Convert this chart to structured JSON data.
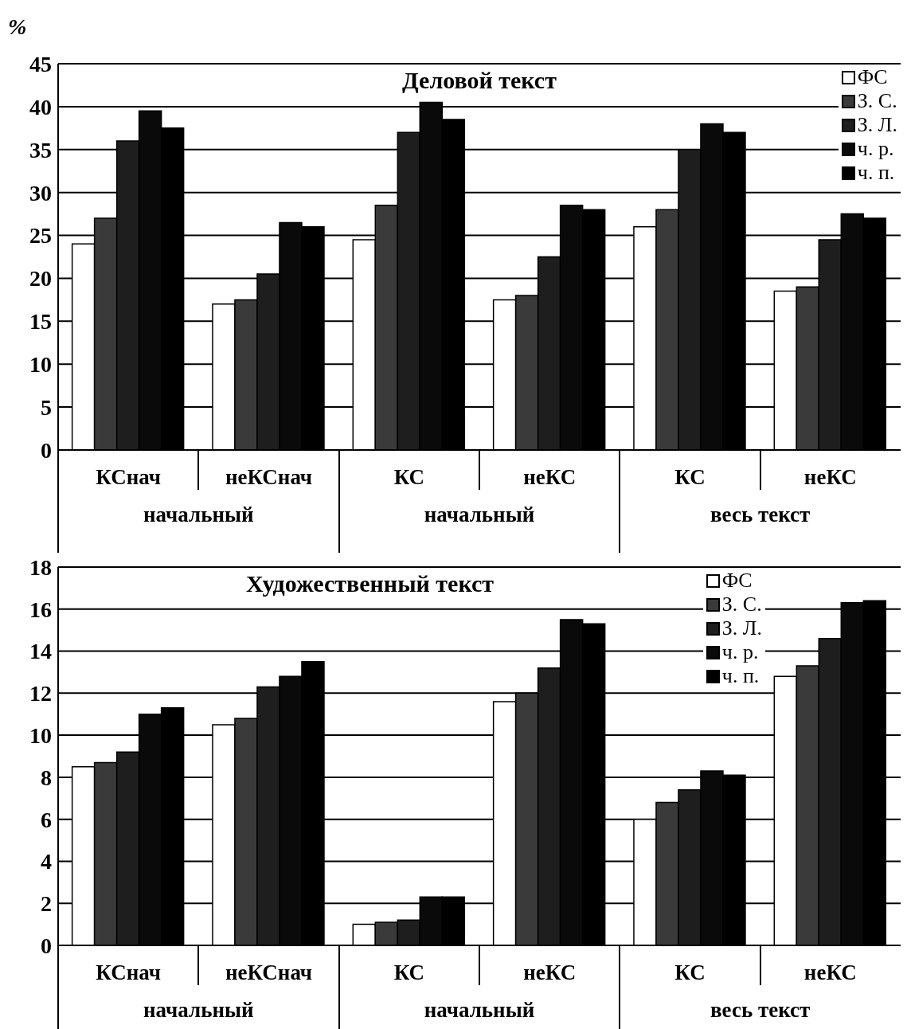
{
  "chart_data": [
    {
      "type": "bar",
      "title": "Деловой текст",
      "ylabel": "%",
      "categories": [
        "КСнач",
        "неКСнач",
        "КС",
        "неКС",
        "КС",
        "неКС"
      ],
      "annotations": [
        "начальный",
        "начальный",
        "весь текст"
      ],
      "series": [
        {
          "name": "ФС",
          "color": "#ffffff",
          "values": [
            24,
            17,
            24.5,
            17.5,
            26,
            18.5
          ]
        },
        {
          "name": "З. С.",
          "color": "#3a3a3a",
          "values": [
            27,
            17.5,
            28.5,
            18,
            28,
            19
          ]
        },
        {
          "name": "З. Л.",
          "color": "#1e1e1e",
          "values": [
            36,
            20.5,
            37,
            22.5,
            35,
            24.5
          ]
        },
        {
          "name": "ч. р.",
          "color": "#0a0a0a",
          "values": [
            39.5,
            26.5,
            40.5,
            28.5,
            38,
            27.5
          ]
        },
        {
          "name": "ч. п.",
          "color": "#000000",
          "values": [
            37.5,
            26,
            38.5,
            28,
            37,
            27
          ]
        }
      ],
      "ylim": [
        0,
        45
      ],
      "yticks": [
        0,
        5,
        10,
        15,
        20,
        25,
        30,
        35,
        40,
        45
      ],
      "grid": "y",
      "legend": "top right"
    },
    {
      "type": "bar",
      "title": "Художественный текст",
      "categories": [
        "КСнач",
        "неКСнач",
        "КС",
        "неКС",
        "КС",
        "неКС"
      ],
      "annotations": [
        "начальный",
        "начальный",
        "весь текст"
      ],
      "series": [
        {
          "name": "ФС",
          "color": "#ffffff",
          "values": [
            8.5,
            10.5,
            1,
            11.6,
            6,
            12.8
          ]
        },
        {
          "name": "З. С.",
          "color": "#3a3a3a",
          "values": [
            8.7,
            10.8,
            1.1,
            12,
            6.8,
            13.3
          ]
        },
        {
          "name": "З. Л.",
          "color": "#1e1e1e",
          "values": [
            9.2,
            12.3,
            1.2,
            13.2,
            7.4,
            14.6
          ]
        },
        {
          "name": "ч. р.",
          "color": "#0a0a0a",
          "values": [
            11,
            12.8,
            2.3,
            15.5,
            8.3,
            16.3
          ]
        },
        {
          "name": "ч. п.",
          "color": "#000000",
          "values": [
            11.3,
            13.5,
            2.3,
            15.3,
            8.1,
            16.4
          ]
        }
      ],
      "ylim": [
        0,
        18
      ],
      "yticks": [
        0,
        2,
        4,
        6,
        8,
        10,
        12,
        14,
        16,
        18
      ],
      "grid": "y",
      "legend": "top right"
    }
  ]
}
